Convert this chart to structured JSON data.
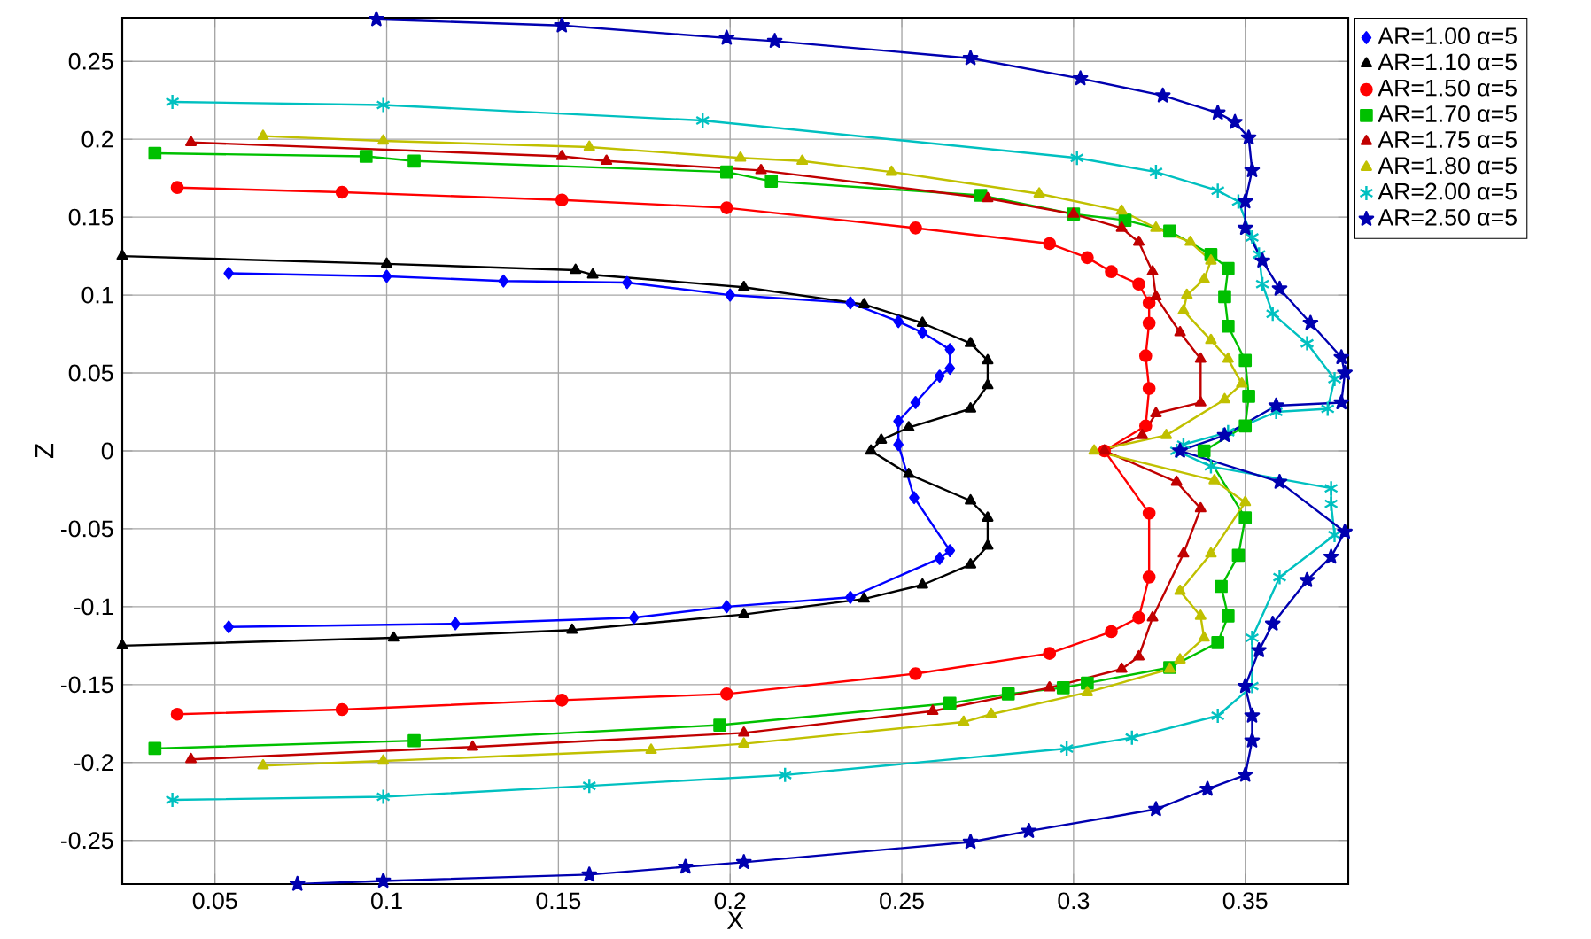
{
  "chart_data": {
    "type": "line",
    "xlabel": "X",
    "ylabel": "Z",
    "xlim": [
      0.023,
      0.38
    ],
    "ylim": [
      -0.278,
      0.278
    ],
    "xticks": [
      0.05,
      0.1,
      0.15,
      0.2,
      0.25,
      0.3,
      0.35
    ],
    "yticks": [
      -0.25,
      -0.2,
      -0.15,
      -0.1,
      -0.05,
      0,
      0.05,
      0.1,
      0.15,
      0.2,
      0.25
    ],
    "grid": true,
    "legend": "top right",
    "line_style": "solid",
    "series": [
      {
        "name": "AR=1.00 α=5",
        "color": "#0000ff",
        "marker": "diamond",
        "x": [
          0.054,
          0.1,
          0.134,
          0.17,
          0.2,
          0.235,
          0.249,
          0.256,
          0.264,
          0.264,
          0.261,
          0.254,
          0.249,
          0.249,
          0.2536,
          0.264,
          0.261,
          0.235,
          0.199,
          0.172,
          0.12,
          0.054
        ],
        "values": [
          0.114,
          0.112,
          0.109,
          0.108,
          0.1,
          0.095,
          0.083,
          0.076,
          0.065,
          0.053,
          0.048,
          0.031,
          0.019,
          0.004,
          -0.03,
          -0.064,
          -0.069,
          -0.094,
          -0.1,
          -0.107,
          -0.111,
          -0.113
        ]
      },
      {
        "name": "AR=1.10 α=5",
        "color": "#000000",
        "marker": "triangle",
        "x": [
          0.023,
          0.1,
          0.155,
          0.16,
          0.204,
          0.239,
          0.256,
          0.27,
          0.275,
          0.275,
          0.27,
          0.252,
          0.244,
          0.241,
          0.252,
          0.27,
          0.275,
          0.275,
          0.27,
          0.256,
          0.239,
          0.204,
          0.154,
          0.102,
          0.023
        ],
        "values": [
          0.125,
          0.12,
          0.116,
          0.113,
          0.105,
          0.094,
          0.082,
          0.069,
          0.058,
          0.042,
          0.027,
          0.015,
          0.007,
          0.0,
          -0.015,
          -0.032,
          -0.043,
          -0.061,
          -0.073,
          -0.086,
          -0.095,
          -0.105,
          -0.115,
          -0.12,
          -0.125
        ]
      },
      {
        "name": "AR=1.50 α=5",
        "color": "#ff0000",
        "marker": "circle",
        "x": [
          0.039,
          0.087,
          0.151,
          0.199,
          0.254,
          0.293,
          0.304,
          0.311,
          0.319,
          0.322,
          0.322,
          0.321,
          0.322,
          0.321,
          0.309,
          0.322,
          0.322,
          0.319,
          0.311,
          0.293,
          0.254,
          0.199,
          0.151,
          0.087,
          0.039
        ],
        "values": [
          0.169,
          0.166,
          0.161,
          0.156,
          0.143,
          0.133,
          0.124,
          0.115,
          0.107,
          0.095,
          0.082,
          0.061,
          0.04,
          0.016,
          0.0,
          -0.04,
          -0.081,
          -0.107,
          -0.116,
          -0.13,
          -0.143,
          -0.156,
          -0.16,
          -0.166,
          -0.169
        ]
      },
      {
        "name": "AR=1.70 α=5",
        "color": "#00c000",
        "marker": "square",
        "x": [
          0.0325,
          0.094,
          0.108,
          0.199,
          0.212,
          0.273,
          0.3,
          0.315,
          0.328,
          0.34,
          0.345,
          0.344,
          0.345,
          0.35,
          0.351,
          0.35,
          0.338,
          0.35,
          0.348,
          0.343,
          0.345,
          0.342,
          0.328,
          0.304,
          0.297,
          0.281,
          0.264,
          0.197,
          0.108,
          0.0325
        ],
        "values": [
          0.191,
          0.189,
          0.186,
          0.179,
          0.173,
          0.164,
          0.152,
          0.148,
          0.141,
          0.126,
          0.117,
          0.099,
          0.08,
          0.058,
          0.035,
          0.016,
          0.0,
          -0.043,
          -0.067,
          -0.087,
          -0.106,
          -0.123,
          -0.139,
          -0.149,
          -0.152,
          -0.156,
          -0.162,
          -0.176,
          -0.186,
          -0.191
        ]
      },
      {
        "name": "AR=1.75 α=5",
        "color": "#c00000",
        "marker": "triangle",
        "x": [
          0.043,
          0.151,
          0.164,
          0.209,
          0.275,
          0.3,
          0.314,
          0.319,
          0.323,
          0.324,
          0.331,
          0.337,
          0.337,
          0.324,
          0.32,
          0.309,
          0.33,
          0.337,
          0.332,
          0.323,
          0.319,
          0.314,
          0.293,
          0.259,
          0.204,
          0.125,
          0.043
        ],
        "values": [
          0.198,
          0.189,
          0.186,
          0.18,
          0.162,
          0.152,
          0.143,
          0.134,
          0.115,
          0.099,
          0.076,
          0.059,
          0.031,
          0.024,
          0.01,
          0.0,
          -0.02,
          -0.037,
          -0.066,
          -0.107,
          -0.132,
          -0.14,
          -0.152,
          -0.167,
          -0.181,
          -0.19,
          -0.198
        ]
      },
      {
        "name": "AR=1.80 α=5",
        "color": "#c0c000",
        "marker": "triangle",
        "x": [
          0.064,
          0.099,
          0.159,
          0.203,
          0.221,
          0.247,
          0.29,
          0.314,
          0.324,
          0.334,
          0.34,
          0.338,
          0.333,
          0.332,
          0.34,
          0.345,
          0.349,
          0.344,
          0.327,
          0.306,
          0.341,
          0.35,
          0.34,
          0.331,
          0.337,
          0.338,
          0.331,
          0.328,
          0.304,
          0.276,
          0.268,
          0.204,
          0.177,
          0.099,
          0.064
        ],
        "values": [
          0.202,
          0.199,
          0.195,
          0.188,
          0.186,
          0.179,
          0.165,
          0.154,
          0.143,
          0.134,
          0.122,
          0.11,
          0.1,
          0.09,
          0.071,
          0.059,
          0.043,
          0.033,
          0.01,
          0.0,
          -0.019,
          -0.033,
          -0.066,
          -0.09,
          -0.106,
          -0.12,
          -0.134,
          -0.14,
          -0.155,
          -0.169,
          -0.174,
          -0.188,
          -0.192,
          -0.199,
          -0.202
        ]
      },
      {
        "name": "AR=2.00 α=5",
        "color": "#00c0c0",
        "marker": "cross",
        "x": [
          0.0376,
          0.099,
          0.192,
          0.301,
          0.324,
          0.342,
          0.348,
          0.352,
          0.354,
          0.355,
          0.358,
          0.368,
          0.376,
          0.374,
          0.359,
          0.345,
          0.332,
          0.33,
          0.34,
          0.375,
          0.375,
          0.376,
          0.36,
          0.352,
          0.352,
          0.342,
          0.317,
          0.298,
          0.216,
          0.159,
          0.099,
          0.0376
        ],
        "values": [
          0.224,
          0.222,
          0.212,
          0.188,
          0.179,
          0.167,
          0.16,
          0.137,
          0.126,
          0.107,
          0.088,
          0.069,
          0.046,
          0.027,
          0.025,
          0.012,
          0.004,
          0.0,
          -0.01,
          -0.024,
          -0.034,
          -0.054,
          -0.081,
          -0.12,
          -0.151,
          -0.17,
          -0.184,
          -0.191,
          -0.208,
          -0.215,
          -0.222,
          -0.224
        ]
      },
      {
        "name": "AR=2.50 α=5",
        "color": "#0000b0",
        "marker": "star",
        "x": [
          0.097,
          0.151,
          0.199,
          0.213,
          0.27,
          0.302,
          0.326,
          0.342,
          0.347,
          0.351,
          0.352,
          0.35,
          0.35,
          0.355,
          0.36,
          0.369,
          0.378,
          0.379,
          0.378,
          0.359,
          0.344,
          0.331,
          0.36,
          0.379,
          0.375,
          0.368,
          0.358,
          0.354,
          0.35,
          0.352,
          0.352,
          0.35,
          0.339,
          0.324,
          0.287,
          0.27,
          0.204,
          0.187,
          0.159,
          0.099,
          0.074
        ],
        "values": [
          0.277,
          0.273,
          0.265,
          0.263,
          0.252,
          0.239,
          0.228,
          0.217,
          0.211,
          0.201,
          0.18,
          0.16,
          0.143,
          0.122,
          0.104,
          0.082,
          0.06,
          0.05,
          0.031,
          0.029,
          0.01,
          0.0,
          -0.02,
          -0.052,
          -0.068,
          -0.083,
          -0.111,
          -0.128,
          -0.151,
          -0.17,
          -0.186,
          -0.208,
          -0.217,
          -0.23,
          -0.244,
          -0.251,
          -0.264,
          -0.267,
          -0.272,
          -0.276,
          -0.278
        ]
      }
    ]
  }
}
